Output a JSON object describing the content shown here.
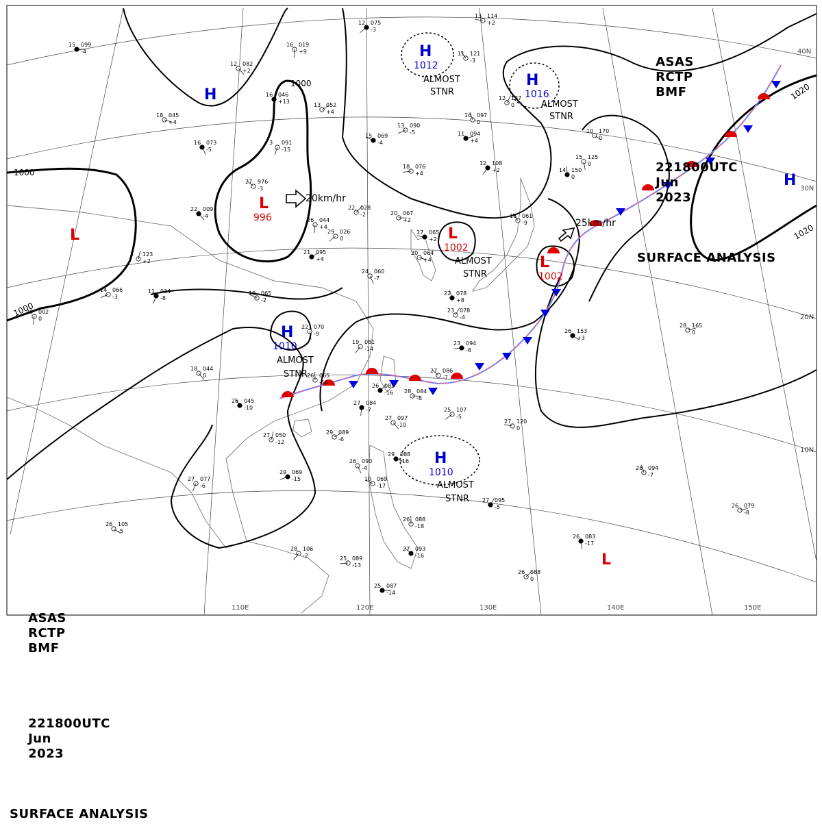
{
  "header": {
    "line1": [
      "ASAS",
      "RCTP",
      "BMF"
    ],
    "line2": [
      "221800UTC",
      "Jun",
      "2023"
    ],
    "line3": "SURFACE ANALYSIS"
  },
  "colors": {
    "high": "#0000cc",
    "low": "#dd0000",
    "isobar": "#000000",
    "coast": "#777777",
    "grid": "#333333"
  },
  "pressure_centers": [
    {
      "id": "h-north-1",
      "type": "H",
      "value": "",
      "almost_stnr": false
    },
    {
      "id": "h-1012",
      "type": "H",
      "value": "1012",
      "almost_stnr": true
    },
    {
      "id": "h-1016",
      "type": "H",
      "value": "1016",
      "almost_stnr": true
    },
    {
      "id": "h-east",
      "type": "H",
      "value": "",
      "almost_stnr": false
    },
    {
      "id": "h-1010-west",
      "type": "H",
      "value": "1010",
      "almost_stnr": true
    },
    {
      "id": "h-1010-south",
      "type": "H",
      "value": "1010",
      "almost_stnr": true
    },
    {
      "id": "l-996",
      "type": "L",
      "value": "996",
      "almost_stnr": false
    },
    {
      "id": "l-west",
      "type": "L",
      "value": "",
      "almost_stnr": false
    },
    {
      "id": "l-1002-a",
      "type": "L",
      "value": "1002",
      "almost_stnr": true
    },
    {
      "id": "l-1002-b",
      "type": "L",
      "value": "1002",
      "almost_stnr": false
    },
    {
      "id": "l-south-east",
      "type": "L",
      "value": "",
      "almost_stnr": false
    }
  ],
  "stationary_label": [
    "ALMOST",
    "STNR"
  ],
  "isobar_labels": [
    "1000",
    "1000",
    "1000",
    "1020",
    "1020"
  ],
  "motions": [
    {
      "id": "motion-996",
      "text": "20km/hr"
    },
    {
      "id": "motion-1002",
      "text": "25km/hr"
    }
  ],
  "grid_labels": {
    "lon": [
      "110E",
      "120E",
      "130E",
      "140E",
      "150E"
    ],
    "lat": [
      "40N",
      "30N",
      "20N",
      "10N"
    ]
  },
  "stations": [
    {
      "t": "15",
      "p": "099",
      "d": "-4"
    },
    {
      "t": "12",
      "p": "082",
      "d": "+2"
    },
    {
      "t": "16",
      "p": "019",
      "d": "+9"
    },
    {
      "t": "12",
      "p": "075",
      "d": "-3"
    },
    {
      "t": "13",
      "p": "114",
      "d": "+2"
    },
    {
      "t": "11",
      "p": "121",
      "d": "-3"
    },
    {
      "t": "16",
      "p": "046",
      "d": "+13"
    },
    {
      "t": "13",
      "p": "052",
      "d": "+4"
    },
    {
      "t": "18",
      "p": "045",
      "d": "+4"
    },
    {
      "t": "16",
      "p": "073",
      "d": "-5"
    },
    {
      "t": "3",
      "p": "091",
      "d": "-15"
    },
    {
      "t": "13",
      "p": "090",
      "d": "-5"
    },
    {
      "t": "15",
      "p": "069",
      "d": "-4"
    },
    {
      "t": "16",
      "p": "097",
      "d": "0"
    },
    {
      "t": "12",
      "p": "137",
      "d": "0"
    },
    {
      "t": "11",
      "p": "094",
      "d": "+4"
    },
    {
      "t": "10",
      "p": "170",
      "d": "0"
    },
    {
      "t": "15",
      "p": "125",
      "d": "0"
    },
    {
      "t": "12",
      "p": "108",
      "d": "+2"
    },
    {
      "t": "18",
      "p": "076",
      "d": "+4"
    },
    {
      "t": "27",
      "p": "976",
      "d": "-3"
    },
    {
      "t": "14",
      "p": "150",
      "d": "0"
    },
    {
      "t": "22",
      "p": "028",
      "d": "-2"
    },
    {
      "t": "20",
      "p": "067",
      "d": "+2"
    },
    {
      "t": "22",
      "p": "009",
      "d": "-4"
    },
    {
      "t": "26",
      "p": "044",
      "d": "+4"
    },
    {
      "t": "29",
      "p": "026",
      "d": "0"
    },
    {
      "t": "17",
      "p": "065",
      "d": "+2"
    },
    {
      "t": "18",
      "p": "061",
      "d": "-9"
    },
    {
      "t": "2",
      "p": "123",
      "d": "+2"
    },
    {
      "t": "21",
      "p": "095",
      "d": "+4"
    },
    {
      "t": "20",
      "p": "064",
      "d": "+4"
    },
    {
      "t": "24",
      "p": "060",
      "d": "-7"
    },
    {
      "t": "11",
      "p": "034",
      "d": "-8"
    },
    {
      "t": "14",
      "p": "066",
      "d": "-3"
    },
    {
      "t": "18",
      "p": "065",
      "d": "-2"
    },
    {
      "t": "22",
      "p": "078",
      "d": "+8"
    },
    {
      "t": "23",
      "p": "078",
      "d": "-4"
    },
    {
      "t": "28",
      "p": "165",
      "d": "0"
    },
    {
      "t": "26",
      "p": "153",
      "d": "+3"
    },
    {
      "t": "22",
      "p": "070",
      "d": "-9"
    },
    {
      "t": "19",
      "p": "081",
      "d": "-14"
    },
    {
      "t": "23",
      "p": "094",
      "d": "-8"
    },
    {
      "t": "27",
      "p": "086",
      "d": "-7"
    },
    {
      "t": "26",
      "p": "065",
      "d": "-16"
    },
    {
      "t": "26",
      "p": "085",
      "d": "-16"
    },
    {
      "t": "28",
      "p": "084",
      "d": "-8"
    },
    {
      "t": "18",
      "p": "044",
      "d": "0"
    },
    {
      "t": "27",
      "p": "084",
      "d": "-7"
    },
    {
      "t": "25",
      "p": "107",
      "d": "-5"
    },
    {
      "t": "27",
      "p": "120",
      "d": "0"
    },
    {
      "t": "26",
      "p": "045",
      "d": "-10"
    },
    {
      "t": "27",
      "p": "050",
      "d": "-12"
    },
    {
      "t": "29",
      "p": "089",
      "d": "-6"
    },
    {
      "t": "29",
      "p": "088",
      "d": "-16"
    },
    {
      "t": "26",
      "p": "090",
      "d": "-4"
    },
    {
      "t": "27",
      "p": "077",
      "d": "-6"
    },
    {
      "t": "29",
      "p": "069",
      "d": "-15"
    },
    {
      "t": "10",
      "p": "069",
      "d": "-17"
    },
    {
      "t": "28",
      "p": "094",
      "d": "-7"
    },
    {
      "t": "27",
      "p": "095",
      "d": "-5"
    },
    {
      "t": "26",
      "p": "079",
      "d": "-8"
    },
    {
      "t": "26",
      "p": "105",
      "d": "-5"
    },
    {
      "t": "26",
      "p": "083",
      "d": "-17"
    },
    {
      "t": "28",
      "p": "106",
      "d": "-2"
    },
    {
      "t": "25",
      "p": "089",
      "d": "-13"
    },
    {
      "t": "27",
      "p": "093",
      "d": "-16"
    },
    {
      "t": "26",
      "p": "088",
      "d": "-18"
    },
    {
      "t": "26",
      "p": "088",
      "d": "0"
    },
    {
      "t": "25",
      "p": "087",
      "d": "-14"
    },
    {
      "t": "27",
      "p": "097",
      "d": "-10"
    },
    {
      "t": "20",
      "p": "002",
      "d": "0"
    }
  ]
}
